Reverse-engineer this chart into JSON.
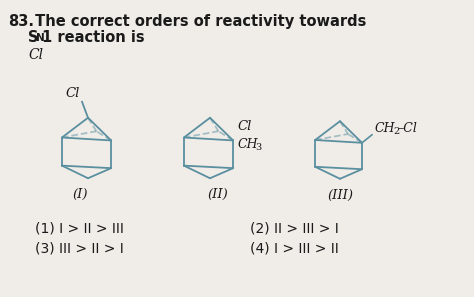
{
  "bg_color": "#f0ede8",
  "struct_color": "#5a8fa0",
  "text_color": "#1a1a1a",
  "title_num": "83.",
  "title_text": " The correct orders of reactivity towards",
  "line2_S": "S",
  "line2_sub": "N",
  "line2_rest": "1 reaction is",
  "cl_topleft": "Cl",
  "label_I": "(I)",
  "label_II": "(II)",
  "label_III": "(III)",
  "opt1": "(1) I > II > III",
  "opt2": "(2) II > III > I",
  "opt3": "(3) III > II > I",
  "opt4": "(4) I > III > II",
  "cl_label1": "Cl",
  "cl_label2": "Cl",
  "ch3_label": "CH",
  "ch3_sub": "3",
  "ch2cl_label": "CH",
  "ch2_sub": "2",
  "dash_label": "–",
  "cl_label3": "Cl"
}
